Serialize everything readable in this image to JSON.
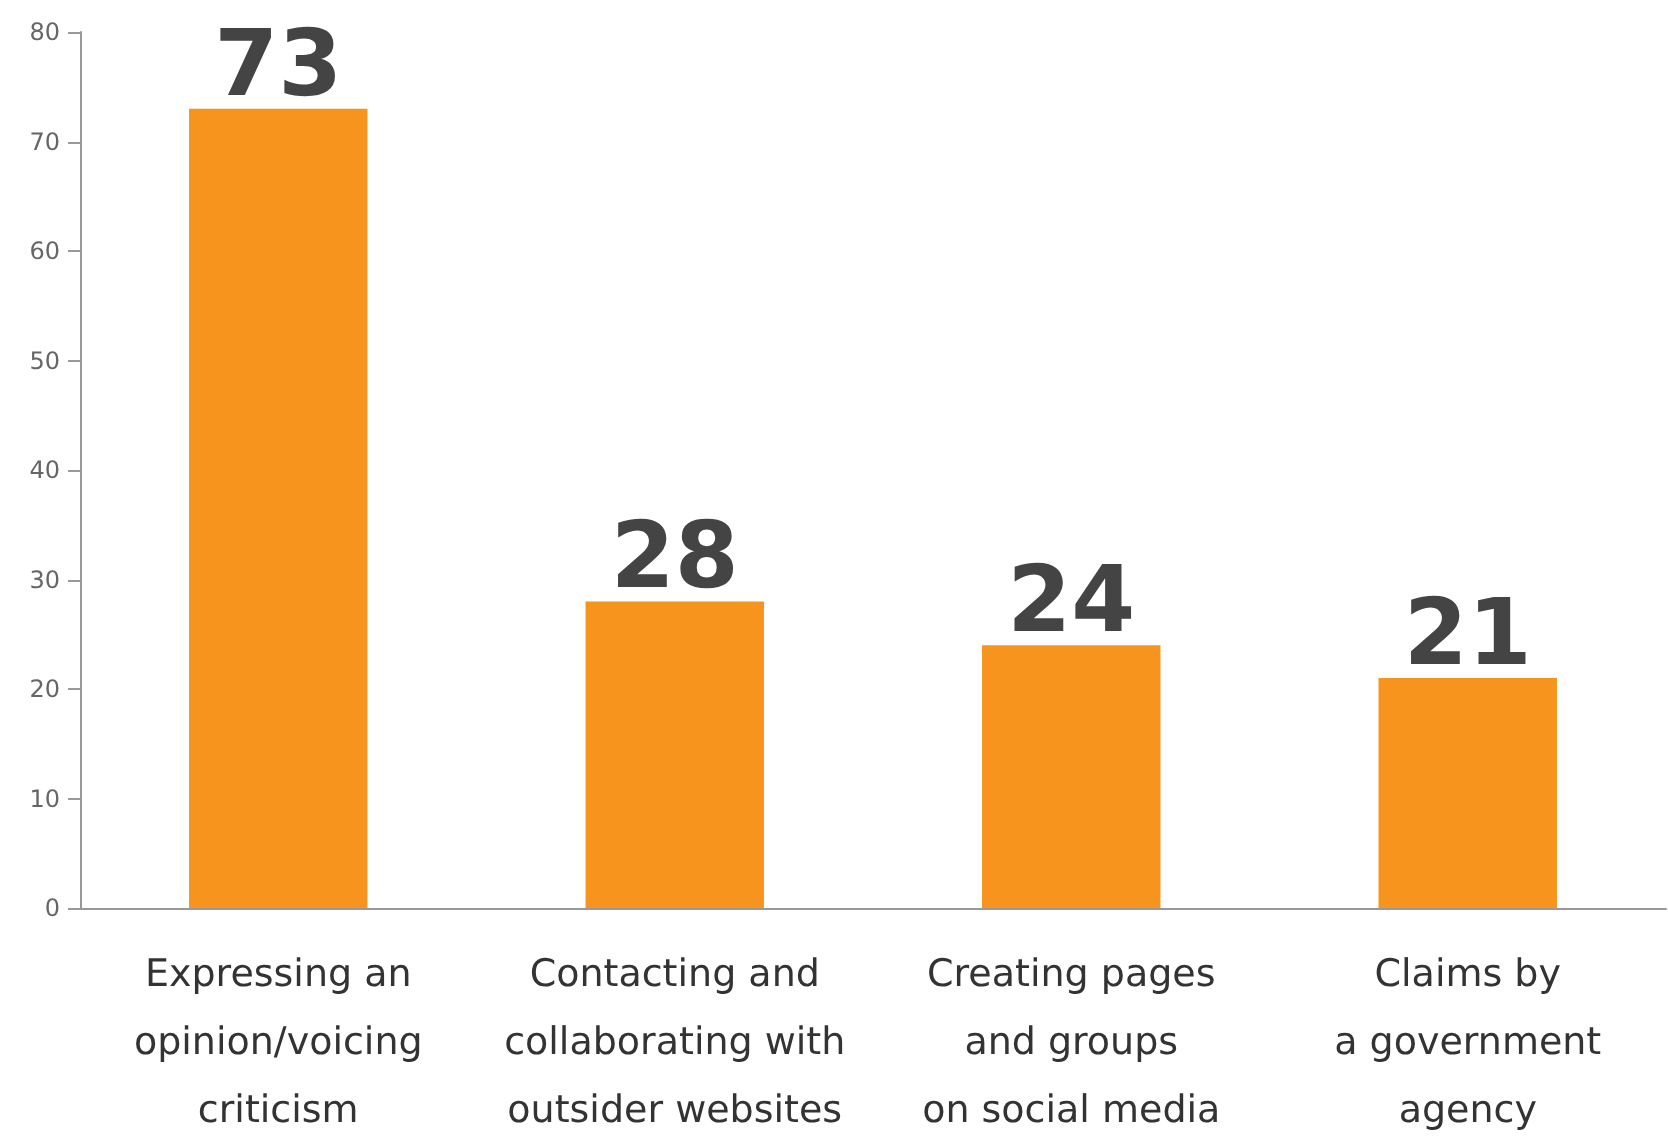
{
  "chart_data": {
    "type": "bar",
    "categories": [
      "Expressing an\nopinion/voicing\ncriticism",
      "Contacting and\ncollaborating with\noutsider websites",
      "Creating pages\nand groups\non social media",
      "Claims by\na government\nagency"
    ],
    "values": [
      73,
      28,
      24,
      21
    ],
    "color": "#f7941d",
    "ylim": [
      0,
      80
    ],
    "yticks": [
      0,
      10,
      20,
      30,
      40,
      50,
      60,
      70,
      80
    ],
    "grid": false,
    "data_labels": true
  }
}
